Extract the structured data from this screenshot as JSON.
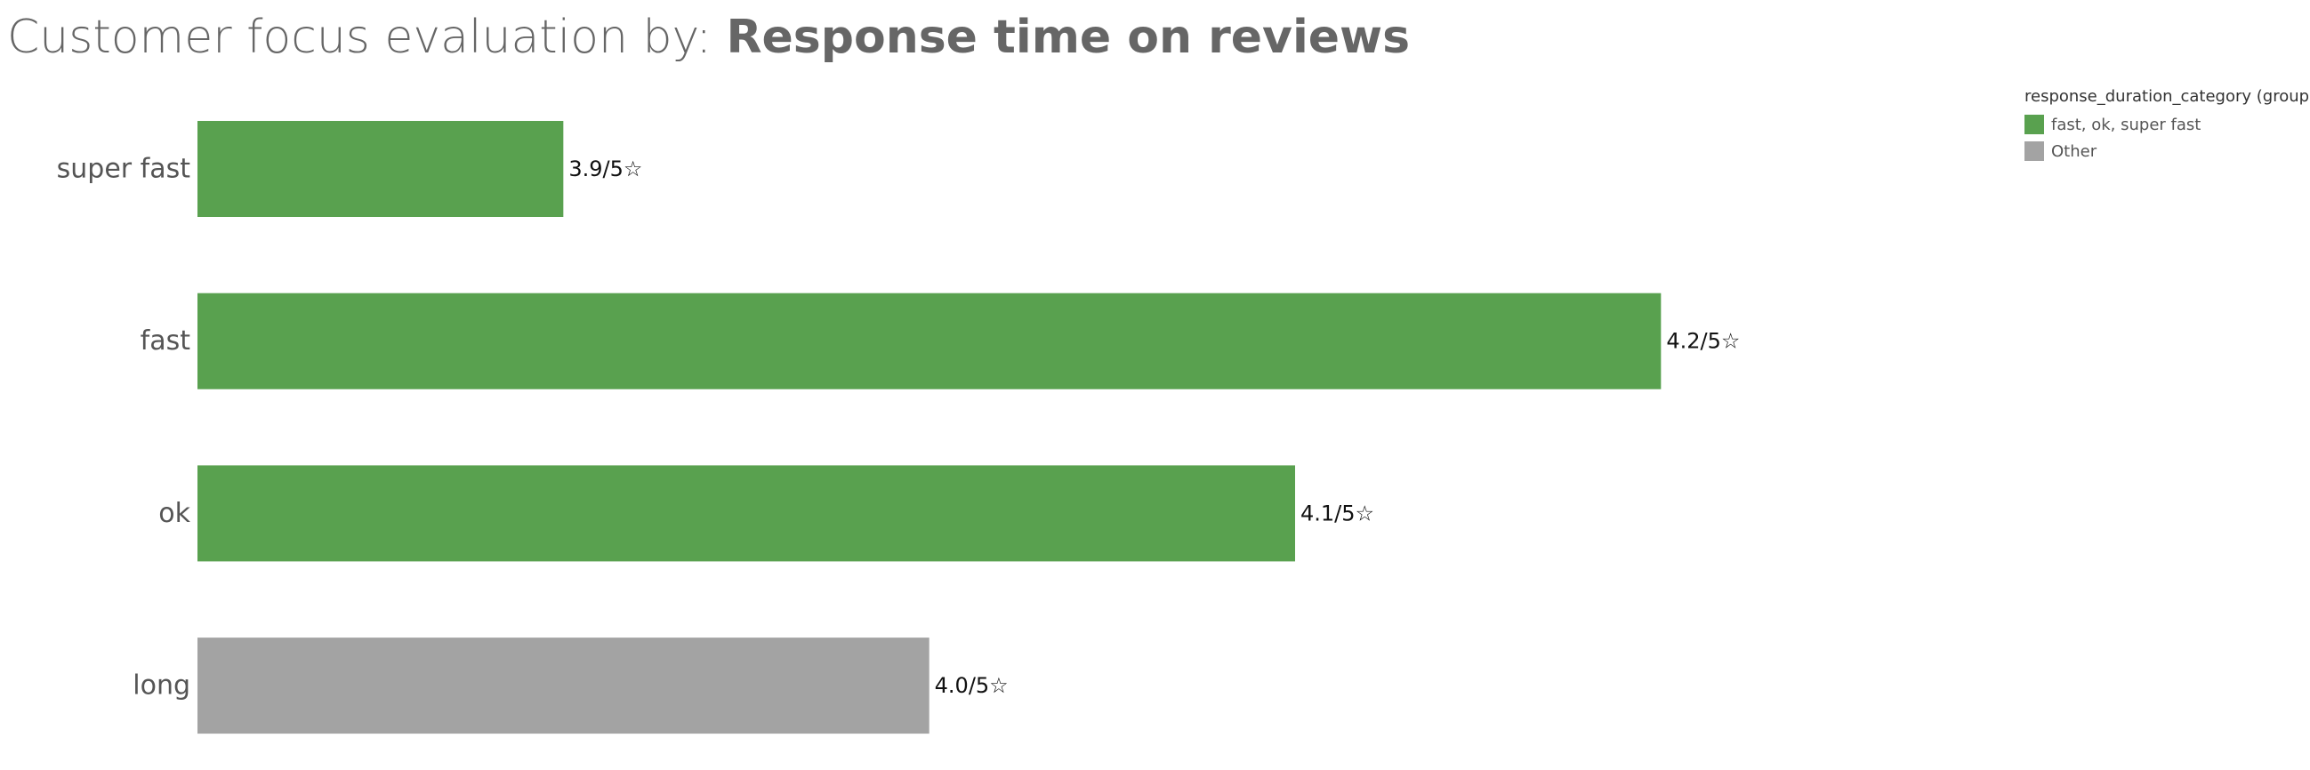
{
  "title": {
    "prefix": "Customer focus evaluation by: ",
    "emphasis": "Response time on reviews"
  },
  "legend": {
    "title": "response_duration_category (group)",
    "items": [
      {
        "label": "fast, ok, super fast",
        "color": "#59a14f"
      },
      {
        "label": "Other",
        "color": "#a3a3a3"
      }
    ]
  },
  "chart_data": {
    "type": "bar",
    "orientation": "horizontal",
    "categories": [
      "super fast",
      "fast",
      "ok",
      "long"
    ],
    "values": [
      3.9,
      4.2,
      4.1,
      4.0
    ],
    "data_labels": [
      "3.9/5☆",
      "4.2/5☆",
      "4.1/5☆",
      "4.0/5☆"
    ],
    "groups": [
      "fast, ok, super fast",
      "fast, ok, super fast",
      "fast, ok, super fast",
      "Other"
    ],
    "colors": {
      "fast, ok, super fast": "#59a14f",
      "Other": "#a3a3a3"
    },
    "xlim": [
      3.8,
      4.25
    ],
    "xlabel": "",
    "ylabel": "",
    "grid": false,
    "legend_position": "top-right"
  }
}
